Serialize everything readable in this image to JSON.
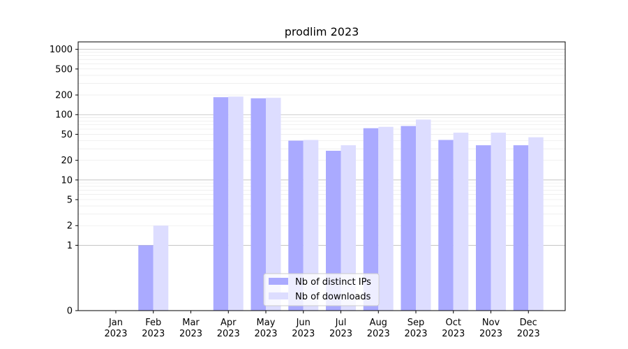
{
  "chart_data": {
    "type": "bar",
    "title": "prodlim 2023",
    "xlabel": "",
    "ylabel": "",
    "categories": [
      {
        "month": "Jan",
        "year": "2023"
      },
      {
        "month": "Feb",
        "year": "2023"
      },
      {
        "month": "Mar",
        "year": "2023"
      },
      {
        "month": "Apr",
        "year": "2023"
      },
      {
        "month": "May",
        "year": "2023"
      },
      {
        "month": "Jun",
        "year": "2023"
      },
      {
        "month": "Jul",
        "year": "2023"
      },
      {
        "month": "Aug",
        "year": "2023"
      },
      {
        "month": "Sep",
        "year": "2023"
      },
      {
        "month": "Oct",
        "year": "2023"
      },
      {
        "month": "Nov",
        "year": "2023"
      },
      {
        "month": "Dec",
        "year": "2023"
      }
    ],
    "series": [
      {
        "name": "Nb of distinct IPs",
        "color": "#aaaaff",
        "values": [
          0,
          1,
          0,
          185,
          178,
          40,
          28,
          62,
          67,
          41,
          34,
          34
        ]
      },
      {
        "name": "Nb of downloads",
        "color": "#ddddff",
        "values": [
          0,
          2,
          0,
          189,
          181,
          41,
          34,
          65,
          84,
          53,
          53,
          45
        ]
      }
    ],
    "y_scale": "symlog",
    "ylim": [
      0,
      1300
    ],
    "yticks": [
      0,
      1,
      2,
      5,
      10,
      20,
      50,
      100,
      200,
      500,
      1000
    ],
    "grid": "y",
    "legend_position": "bottom-center"
  }
}
